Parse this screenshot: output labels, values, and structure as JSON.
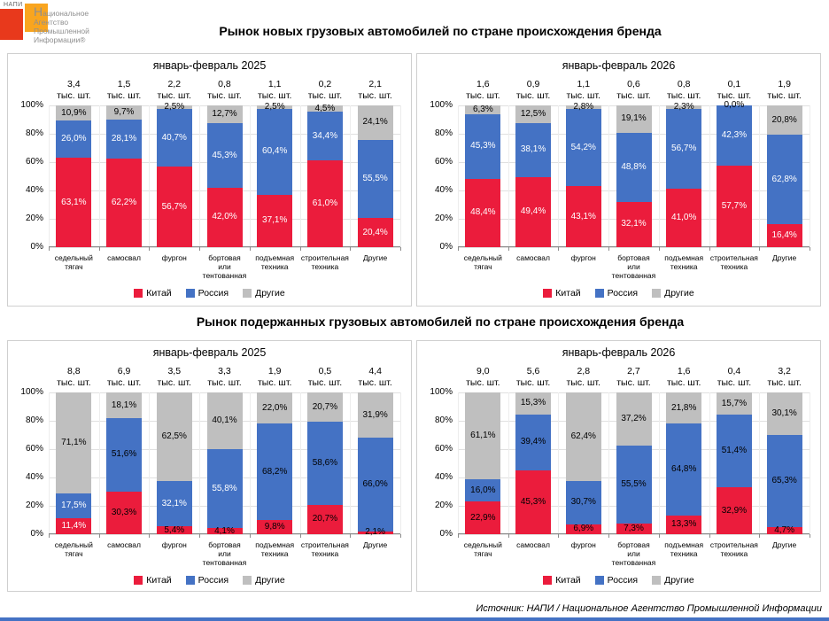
{
  "logo": {
    "badge": "НАПИ",
    "lines": [
      "Национальное",
      "Агентство",
      "Промышленной",
      "Информации®"
    ]
  },
  "titles": {
    "section1": "Рынок новых грузовых автомобилей по стране происхождения бренда",
    "section2": "Рынок подержанных грузовых автомобилей по стране происхождения бренда"
  },
  "source": "Источник: НАПИ / Национальное Агентство Промышленной Информации",
  "colors": {
    "china": "#EB1C3C",
    "russia": "#4472C4",
    "other": "#BFBFBF",
    "footer_bar": "#4472C4",
    "logo_red": "#E8391C",
    "logo_orange": "#F9A51F"
  },
  "y_ticks": [
    "100%",
    "80%",
    "60%",
    "40%",
    "20%",
    "0%"
  ],
  "categories": [
    [
      "седельный",
      "тягач"
    ],
    [
      "самосвал"
    ],
    [
      "фургон"
    ],
    [
      "бортовая",
      "или",
      "тентованная"
    ],
    [
      "подъемная",
      "техника"
    ],
    [
      "строительная",
      "техника"
    ],
    [
      "Другие"
    ]
  ],
  "totals_unit": "тыс. шт.",
  "chart_data": [
    {
      "type": "bar",
      "stacked": "100%",
      "title": "январь-февраль 2025",
      "ylim": [
        0,
        100
      ],
      "legend_position": "bottom",
      "totals": [
        "3,4",
        "1,5",
        "2,2",
        "0,8",
        "1,1",
        "0,2",
        "2,1"
      ],
      "series": [
        {
          "name": "Китай",
          "key": "china",
          "values": [
            63.1,
            62.2,
            56.7,
            42.0,
            37.1,
            61.0,
            20.4
          ],
          "label_colors": [
            "#FFFFFF",
            "#FFFFFF",
            "#FFFFFF",
            "#FFFFFF",
            "#FFFFFF",
            "#FFFFFF",
            "#FFFFFF"
          ]
        },
        {
          "name": "Россия",
          "key": "russia",
          "values": [
            26.0,
            28.1,
            40.7,
            45.3,
            60.4,
            34.4,
            55.5
          ],
          "label_colors": [
            "#FFFFFF",
            "#FFFFFF",
            "#FFFFFF",
            "#FFFFFF",
            "#FFFFFF",
            "#FFFFFF",
            "#FFFFFF"
          ]
        },
        {
          "name": "Другие",
          "key": "other",
          "values": [
            10.9,
            9.7,
            2.5,
            12.7,
            2.5,
            4.5,
            24.1
          ],
          "label_colors": [
            "#000000",
            "#000000",
            "#000000",
            "#000000",
            "#000000",
            "#000000",
            "#000000"
          ]
        }
      ]
    },
    {
      "type": "bar",
      "stacked": "100%",
      "title": "январь-февраль 2026",
      "ylim": [
        0,
        100
      ],
      "legend_position": "bottom",
      "totals": [
        "1,6",
        "0,9",
        "1,1",
        "0,6",
        "0,8",
        "0,1",
        "1,9"
      ],
      "series": [
        {
          "name": "Китай",
          "key": "china",
          "values": [
            48.4,
            49.4,
            43.1,
            32.1,
            41.0,
            57.7,
            16.4
          ],
          "label_colors": [
            "#FFFFFF",
            "#FFFFFF",
            "#FFFFFF",
            "#FFFFFF",
            "#FFFFFF",
            "#FFFFFF",
            "#FFFFFF"
          ]
        },
        {
          "name": "Россия",
          "key": "russia",
          "values": [
            45.3,
            38.1,
            54.2,
            48.8,
            56.7,
            42.3,
            62.8
          ],
          "label_colors": [
            "#FFFFFF",
            "#FFFFFF",
            "#FFFFFF",
            "#FFFFFF",
            "#FFFFFF",
            "#FFFFFF",
            "#FFFFFF"
          ]
        },
        {
          "name": "Другие",
          "key": "other",
          "values": [
            6.3,
            12.5,
            2.8,
            19.1,
            2.3,
            0.0,
            20.8
          ],
          "label_colors": [
            "#000000",
            "#000000",
            "#000000",
            "#000000",
            "#000000",
            "#000000",
            "#000000"
          ]
        }
      ]
    },
    {
      "type": "bar",
      "stacked": "100%",
      "title": "январь-февраль 2025",
      "ylim": [
        0,
        100
      ],
      "legend_position": "bottom",
      "totals": [
        "8,8",
        "6,9",
        "3,5",
        "3,3",
        "1,9",
        "0,5",
        "4,4"
      ],
      "series": [
        {
          "name": "Китай",
          "key": "china",
          "values": [
            11.4,
            30.3,
            5.4,
            4.1,
            9.8,
            20.7,
            2.1
          ],
          "label_colors": [
            "#FFFFFF",
            "#000000",
            "#000000",
            "#000000",
            "#000000",
            "#000000",
            "#000000"
          ]
        },
        {
          "name": "Россия",
          "key": "russia",
          "values": [
            17.5,
            51.6,
            32.1,
            55.8,
            68.2,
            58.6,
            66.0
          ],
          "label_colors": [
            "#FFFFFF",
            "#000000",
            "#FFFFFF",
            "#FFFFFF",
            "#000000",
            "#000000",
            "#000000"
          ]
        },
        {
          "name": "Другие",
          "key": "other",
          "values": [
            71.1,
            18.1,
            62.5,
            40.1,
            22.0,
            20.7,
            31.9
          ],
          "label_colors": [
            "#000000",
            "#000000",
            "#000000",
            "#000000",
            "#000000",
            "#000000",
            "#000000"
          ]
        }
      ]
    },
    {
      "type": "bar",
      "stacked": "100%",
      "title": "январь-февраль 2026",
      "ylim": [
        0,
        100
      ],
      "legend_position": "bottom",
      "totals": [
        "9,0",
        "5,6",
        "2,8",
        "2,7",
        "1,6",
        "0,4",
        "3,2"
      ],
      "series": [
        {
          "name": "Китай",
          "key": "china",
          "values": [
            22.9,
            45.3,
            6.9,
            7.3,
            13.3,
            32.9,
            4.7
          ],
          "label_colors": [
            "#000000",
            "#000000",
            "#000000",
            "#000000",
            "#000000",
            "#000000",
            "#000000"
          ]
        },
        {
          "name": "Россия",
          "key": "russia",
          "values": [
            16.0,
            39.4,
            30.7,
            55.5,
            64.8,
            51.4,
            65.3
          ],
          "label_colors": [
            "#000000",
            "#000000",
            "#000000",
            "#000000",
            "#000000",
            "#000000",
            "#000000"
          ]
        },
        {
          "name": "Другие",
          "key": "other",
          "values": [
            61.1,
            15.3,
            62.4,
            37.2,
            21.8,
            15.7,
            30.1
          ],
          "label_colors": [
            "#000000",
            "#000000",
            "#000000",
            "#000000",
            "#000000",
            "#000000",
            "#000000"
          ]
        }
      ]
    }
  ]
}
